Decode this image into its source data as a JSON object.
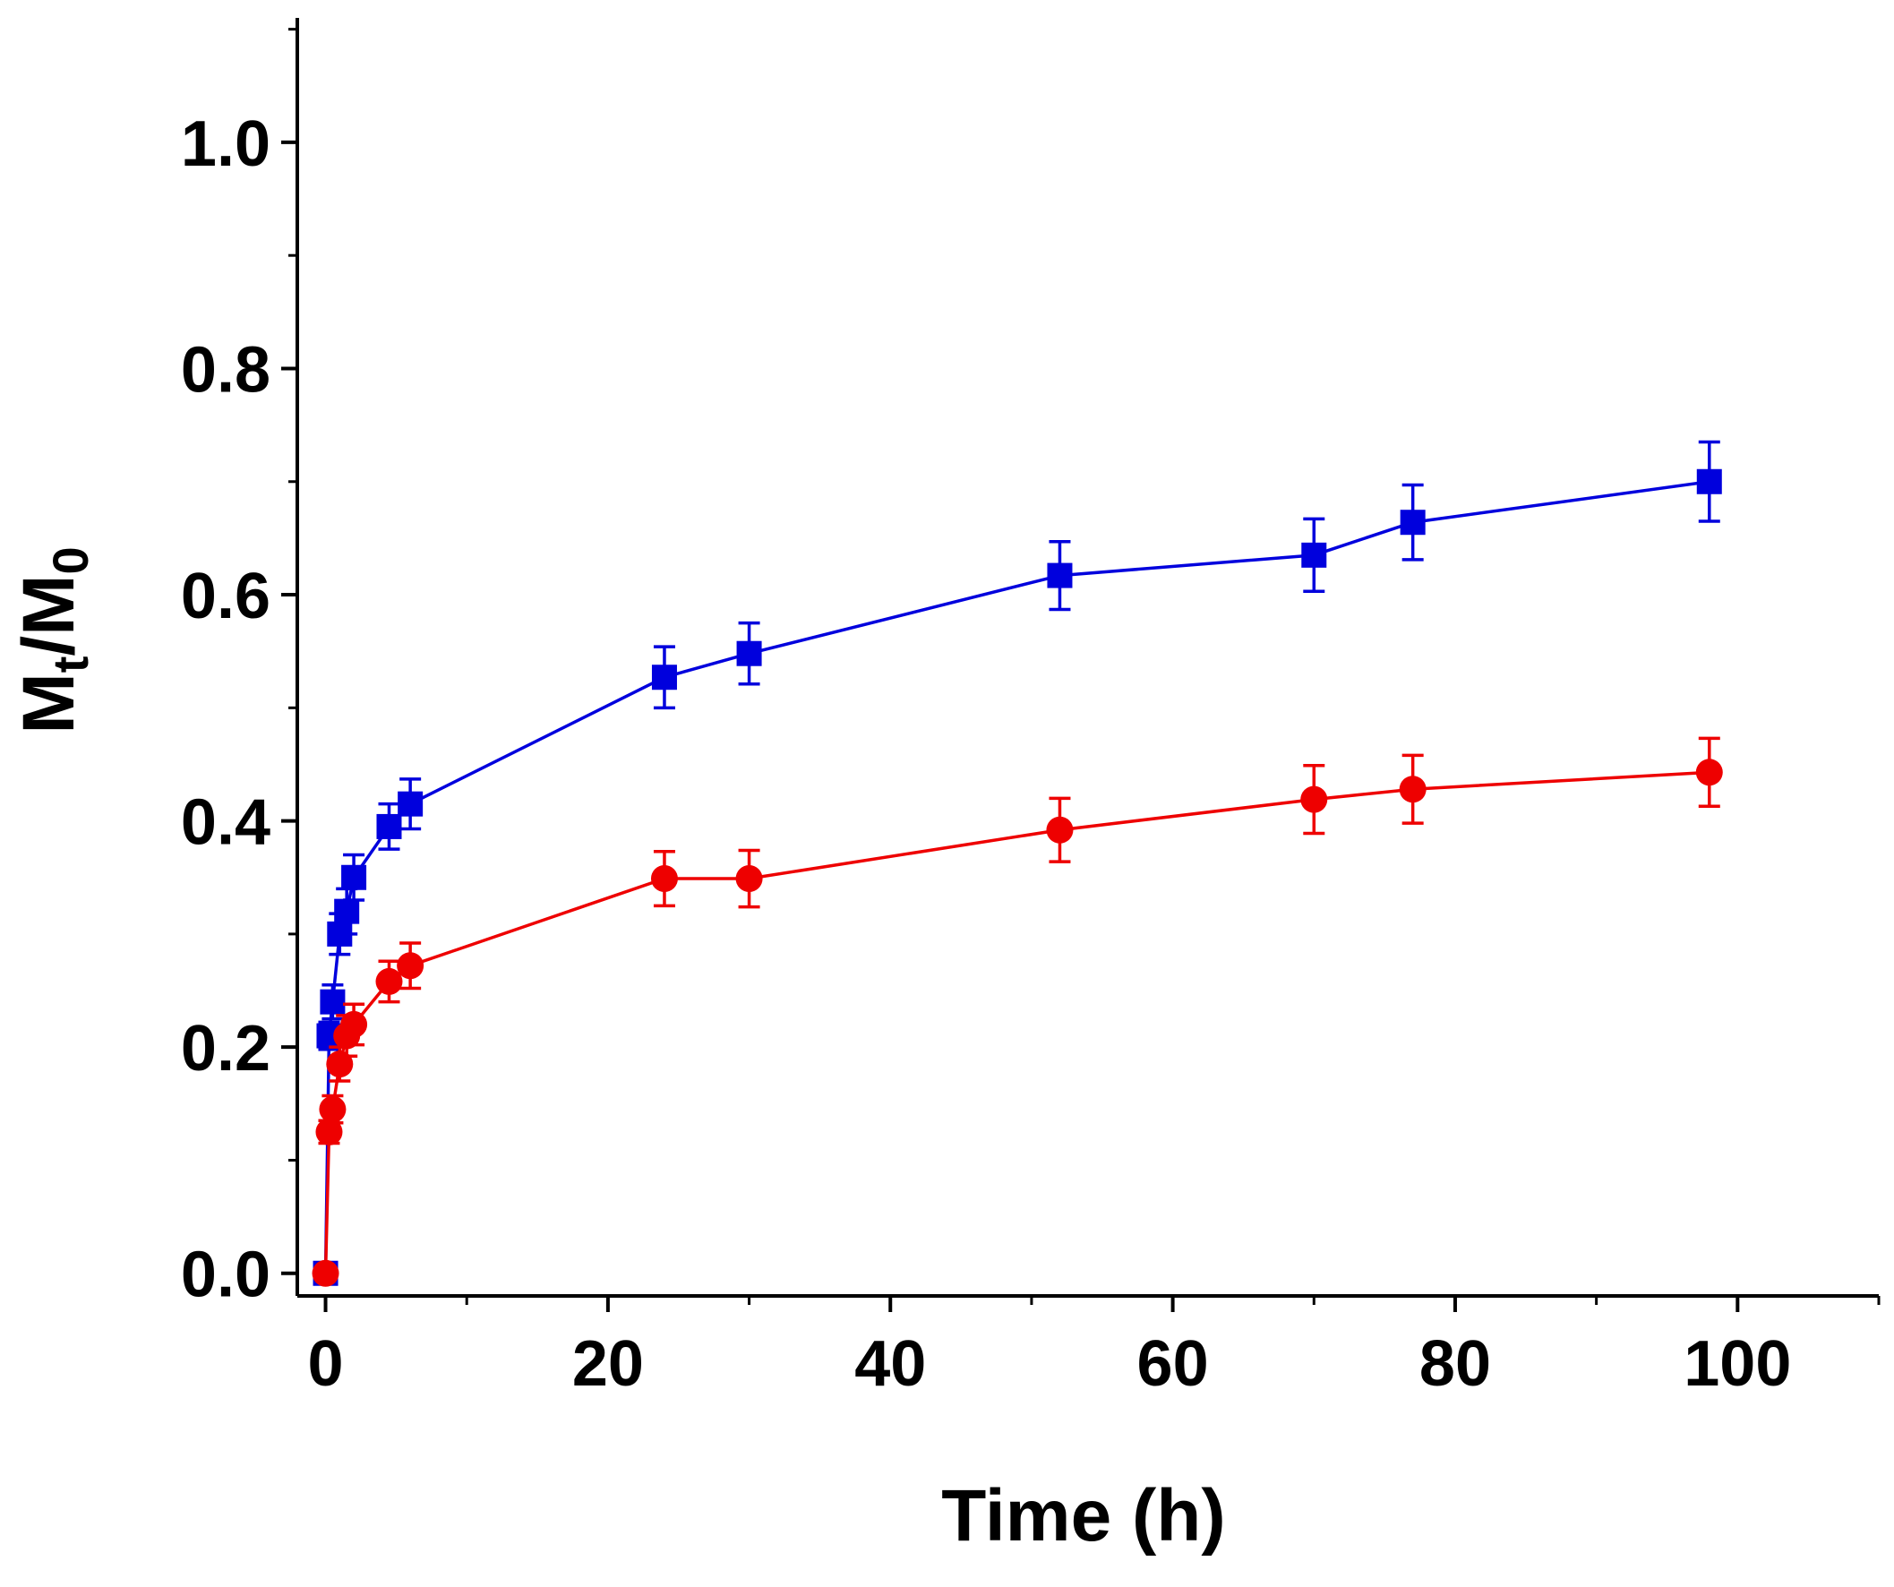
{
  "chart_data": {
    "type": "line",
    "title": "",
    "xlabel": "Time (h)",
    "ylabel": {
      "main": "M",
      "sub1": "t",
      "slash": "/",
      "main2": "M",
      "sub2": "0"
    },
    "xlim": [
      -2,
      110
    ],
    "ylim": [
      -0.02,
      1.11
    ],
    "xticks": [
      0,
      20,
      40,
      60,
      80,
      100
    ],
    "xtick_labels": [
      "0",
      "20",
      "40",
      "60",
      "80",
      "100"
    ],
    "yticks": [
      0.0,
      0.2,
      0.4,
      0.6,
      0.8,
      1.0
    ],
    "ytick_labels": [
      "0.0",
      "0.2",
      "0.4",
      "0.6",
      "0.8",
      "1.0"
    ],
    "legend": null,
    "series": [
      {
        "name": "blue squares",
        "color": "#0000dd",
        "marker": "square",
        "x": [
          0,
          0.25,
          0.5,
          1,
          1.5,
          2,
          4.5,
          6,
          24,
          30,
          52,
          70,
          77,
          98
        ],
        "y": [
          0.0,
          0.21,
          0.24,
          0.3,
          0.32,
          0.35,
          0.395,
          0.415,
          0.527,
          0.548,
          0.617,
          0.635,
          0.664,
          0.7
        ],
        "err": [
          0,
          0.012,
          0.015,
          0.018,
          0.02,
          0.02,
          0.02,
          0.022,
          0.027,
          0.027,
          0.03,
          0.032,
          0.033,
          0.035
        ]
      },
      {
        "name": "red circles",
        "color": "#ee0000",
        "marker": "circle",
        "x": [
          0,
          0.25,
          0.5,
          1,
          1.5,
          2,
          4.5,
          6,
          24,
          30,
          52,
          70,
          77,
          98
        ],
        "y": [
          0.0,
          0.125,
          0.145,
          0.185,
          0.21,
          0.22,
          0.258,
          0.272,
          0.349,
          0.349,
          0.392,
          0.419,
          0.428,
          0.443
        ],
        "err": [
          0,
          0.01,
          0.012,
          0.015,
          0.018,
          0.018,
          0.018,
          0.02,
          0.024,
          0.025,
          0.028,
          0.03,
          0.03,
          0.03
        ]
      }
    ]
  }
}
